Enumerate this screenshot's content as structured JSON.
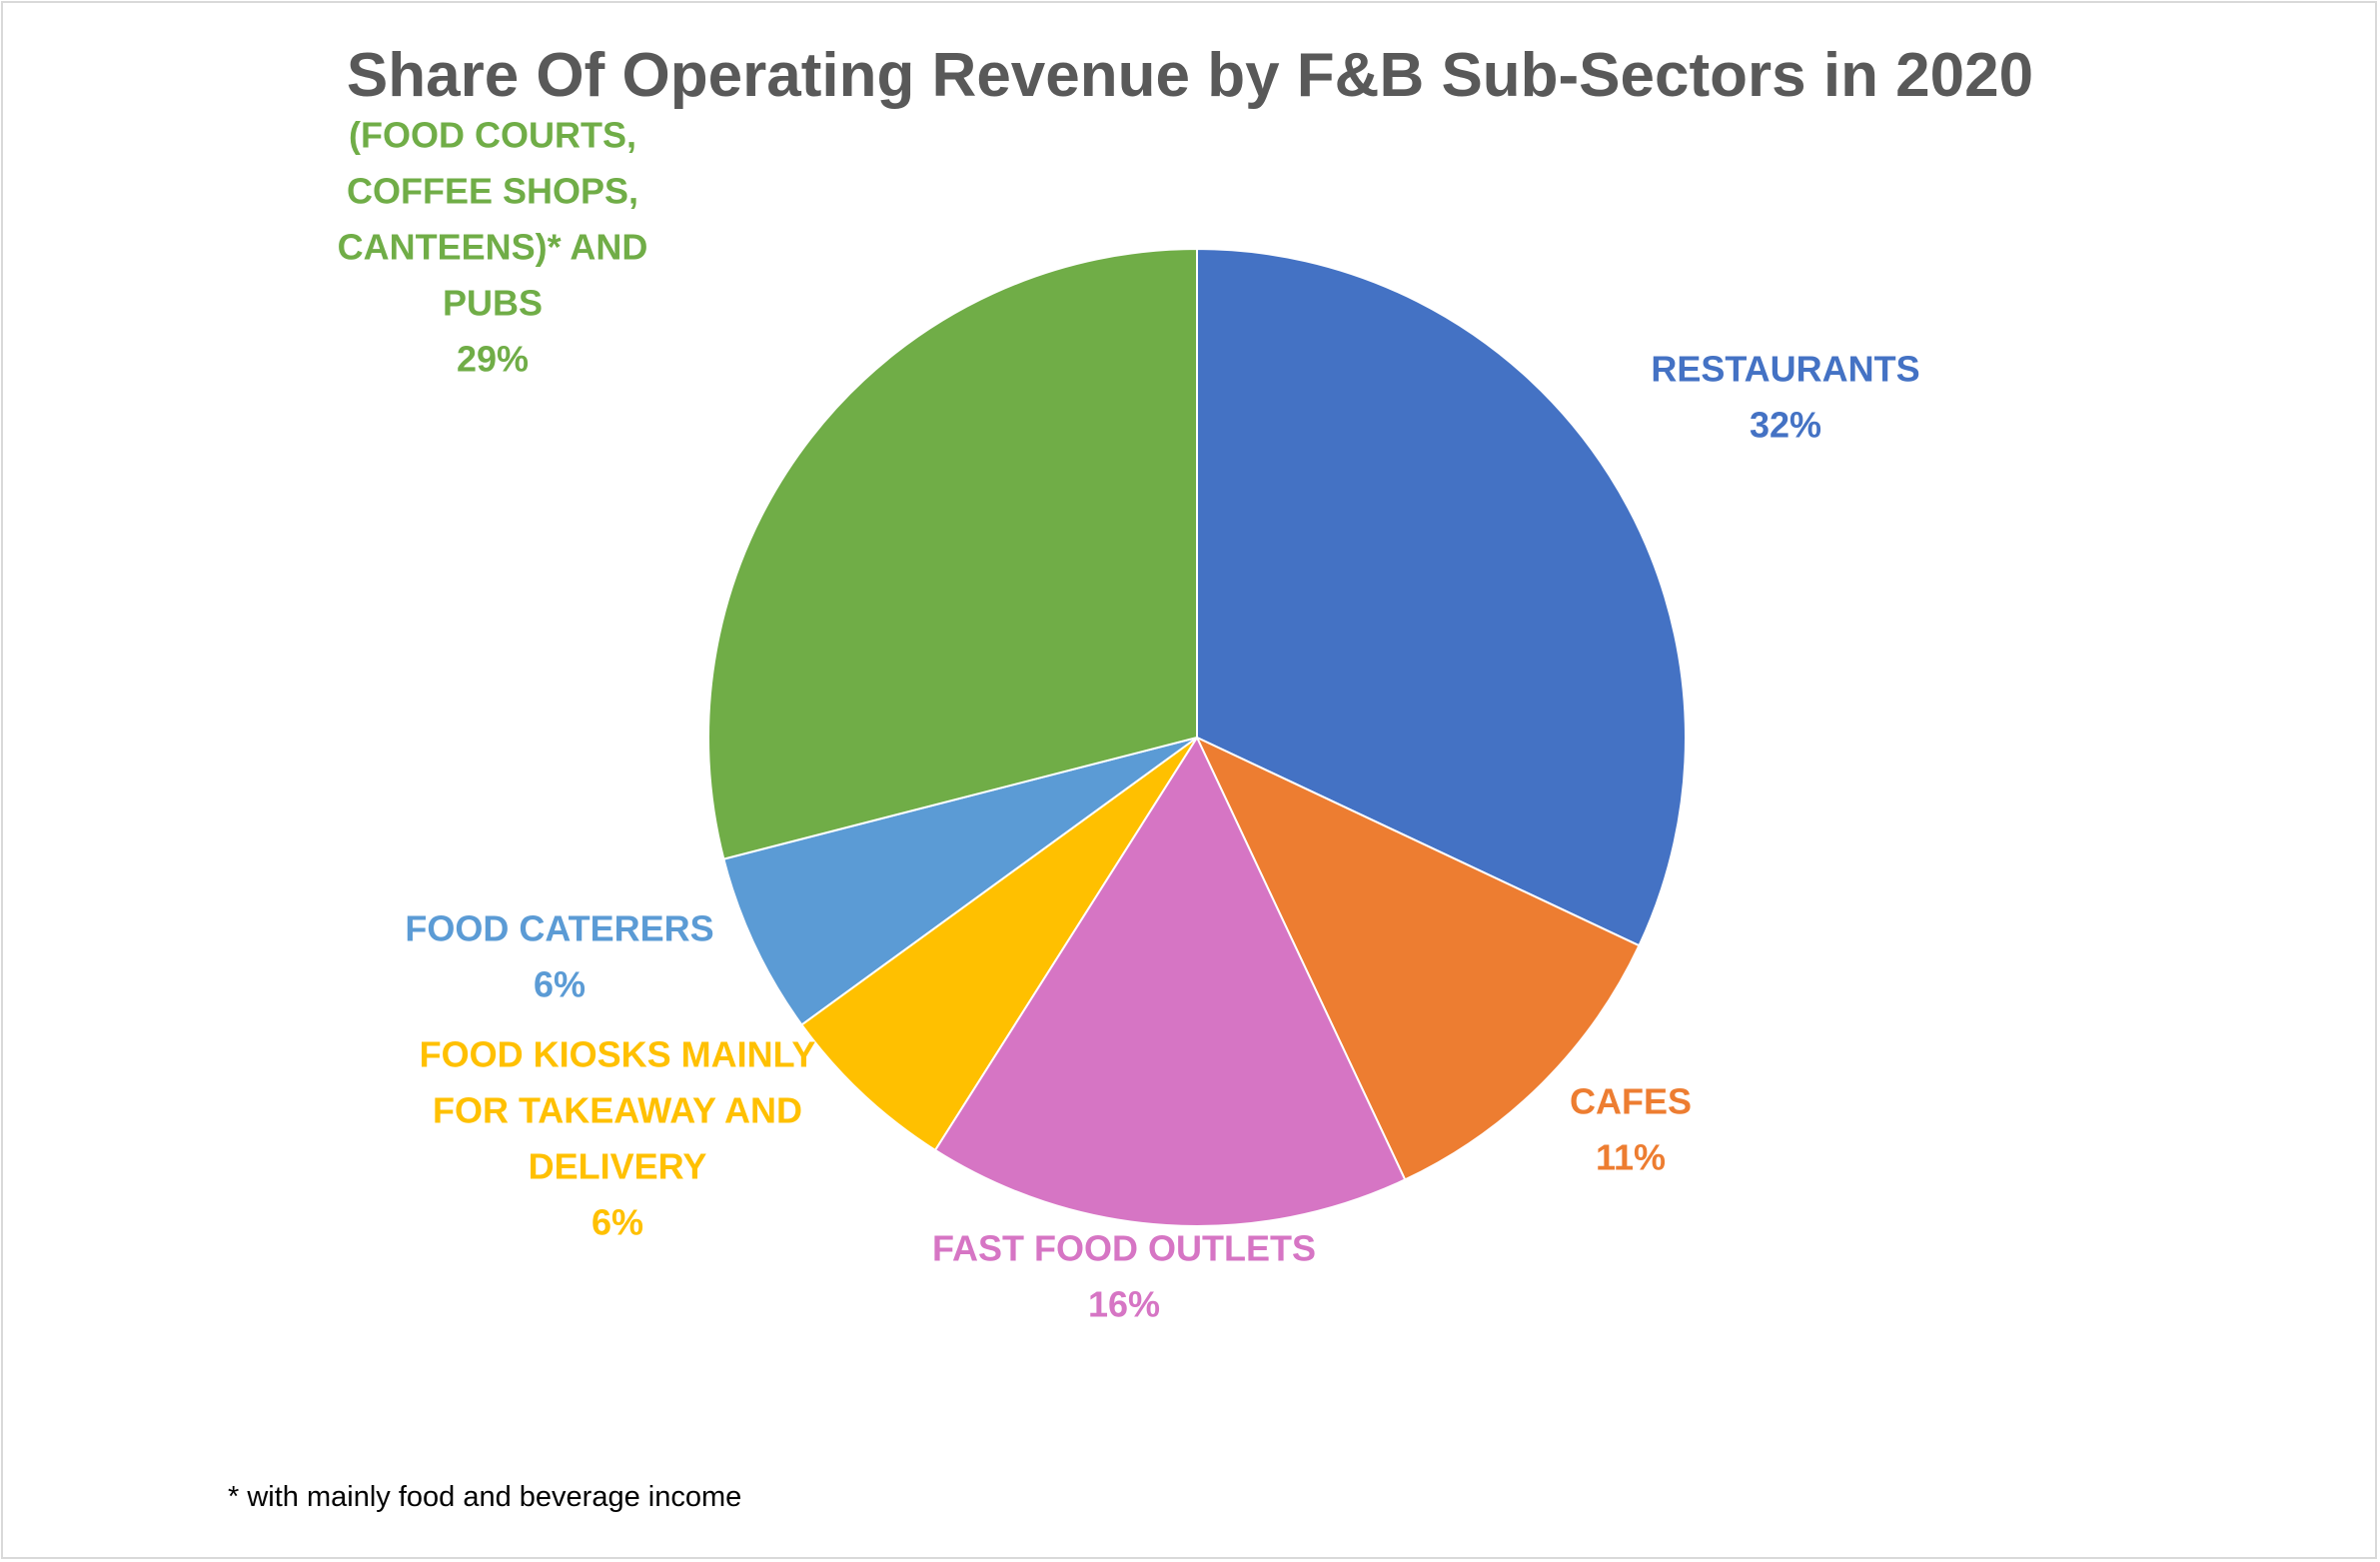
{
  "chart_data": {
    "type": "pie",
    "title": "Share Of Operating Revenue by F&B Sub-Sectors in 2020",
    "start_angle": "12 o'clock",
    "direction": "clockwise",
    "slices": [
      {
        "label": [
          "RESTAURANTS"
        ],
        "value": 32,
        "value_label": "32%",
        "color": "#4472C4"
      },
      {
        "label": [
          "CAFES"
        ],
        "value": 11,
        "value_label": "11%",
        "color": "#ED7D31"
      },
      {
        "label": [
          "FAST FOOD OUTLETS"
        ],
        "value": 16,
        "value_label": "16%",
        "color": "#D675C4"
      },
      {
        "label": [
          "FOOD KIOSKS MAINLY",
          "FOR TAKEAWAY AND",
          "DELIVERY"
        ],
        "value": 6,
        "value_label": "6%",
        "color": "#FFC000"
      },
      {
        "label": [
          "FOOD CATERERS"
        ],
        "value": 6,
        "value_label": "6%",
        "color": "#5B9BD5"
      },
      {
        "label": [
          "(FOOD COURTS,",
          "COFFEE SHOPS,",
          "CANTEENS)* AND",
          "PUBS"
        ],
        "value": 29,
        "value_label": "29%",
        "color": "#70AD47"
      }
    ],
    "legend": "none",
    "footnote": "* with mainly food and beverage income"
  }
}
